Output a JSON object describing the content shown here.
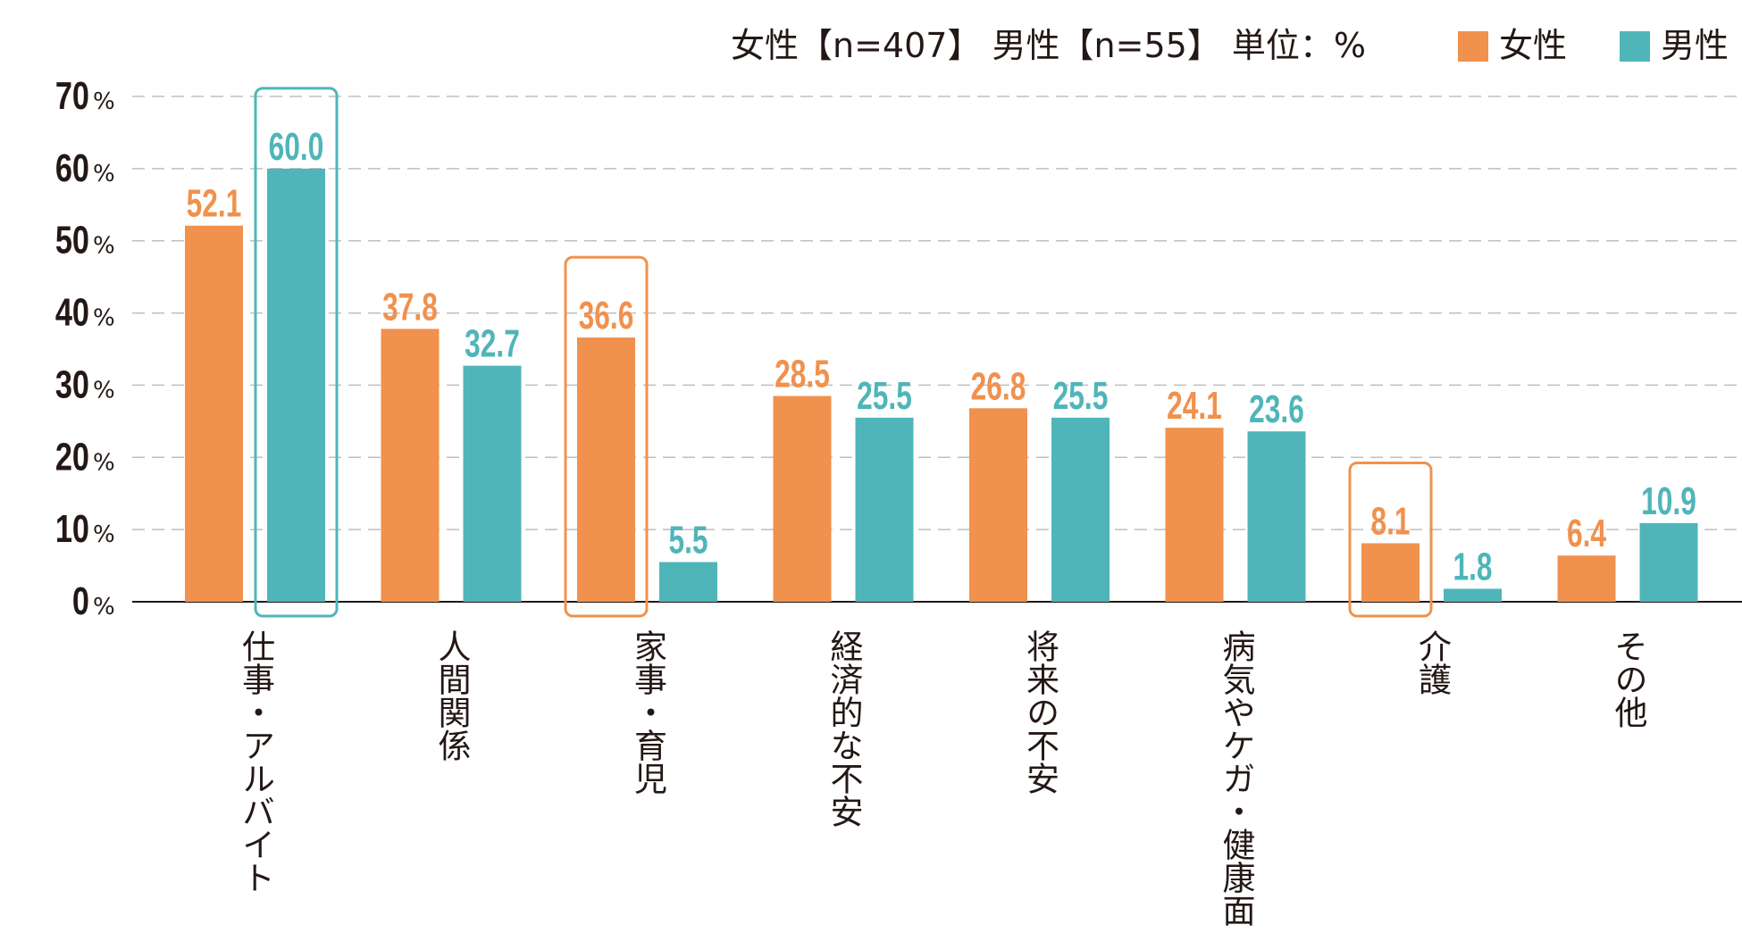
{
  "header": {
    "sample_info": "女性【n=407】 男性【n=55】 単位：%"
  },
  "colors": {
    "female": "#f0914d",
    "male": "#4fb5b9",
    "axis": "#231815",
    "grid": "#bfbfbf"
  },
  "chart_data": {
    "type": "bar",
    "title": "",
    "xlabel": "",
    "ylabel": "",
    "ylim": [
      0,
      70
    ],
    "y_ticks": [
      {
        "num": "0",
        "unit": "%"
      },
      {
        "num": "10",
        "unit": "%"
      },
      {
        "num": "20",
        "unit": "%"
      },
      {
        "num": "30",
        "unit": "%"
      },
      {
        "num": "40",
        "unit": "%"
      },
      {
        "num": "50",
        "unit": "%"
      },
      {
        "num": "60",
        "unit": "%"
      },
      {
        "num": "70",
        "unit": "%"
      }
    ],
    "categories": [
      "仕事・アルバイト",
      "人間関係",
      "家事・育児",
      "経済的な不安",
      "将来の不安",
      "病気やケガ・健康面",
      "介護",
      "その他"
    ],
    "series": [
      {
        "name": "女性",
        "color_key": "female",
        "values": [
          52.1,
          37.8,
          36.6,
          28.5,
          26.8,
          24.1,
          8.1,
          6.4
        ],
        "labels": [
          "52.1",
          "37.8",
          "36.6",
          "28.5",
          "26.8",
          "24.1",
          "8.1",
          "6.4"
        ]
      },
      {
        "name": "男性",
        "color_key": "male",
        "values": [
          60.0,
          32.7,
          5.5,
          25.5,
          25.5,
          23.6,
          1.8,
          10.9
        ],
        "labels": [
          "60.0",
          "32.7",
          "5.5",
          "25.5",
          "25.5",
          "23.6",
          "1.8",
          "10.9"
        ]
      }
    ],
    "highlights": [
      {
        "category_index": 0,
        "series_index": 1
      },
      {
        "category_index": 2,
        "series_index": 0
      },
      {
        "category_index": 6,
        "series_index": 0
      }
    ],
    "legend": {
      "position": "top-right",
      "entries": [
        "女性",
        "男性"
      ]
    },
    "grid": true
  }
}
